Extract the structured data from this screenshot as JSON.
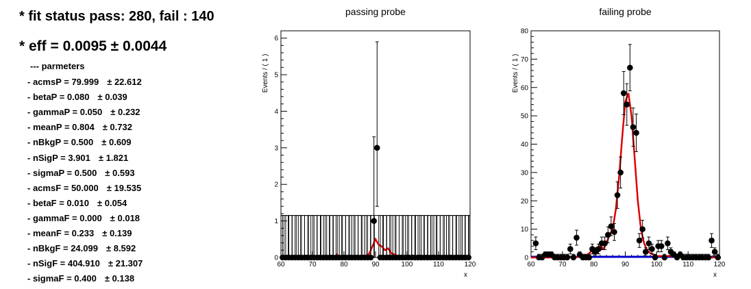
{
  "summary": {
    "status_text": "* fit status pass: 280, fail : 140",
    "eff_text": "* eff = 0.0095  ± 0.0044",
    "params_title": "--- parmeters",
    "parameters": [
      {
        "label": "- acmsP = 79.999",
        "error": "± 22.612"
      },
      {
        "label": "- betaP = 0.080",
        "error": "± 0.039"
      },
      {
        "label": "- gammaP = 0.050",
        "error": "± 0.232"
      },
      {
        "label": "- meanP = 0.804",
        "error": "± 0.732"
      },
      {
        "label": "- nBkgP = 0.500",
        "error": "± 0.609"
      },
      {
        "label": "- nSigP = 3.901",
        "error": "± 1.821"
      },
      {
        "label": "- sigmaP = 0.500",
        "error": "± 0.593"
      },
      {
        "label": "- acmsF = 50.000",
        "error": "± 19.535"
      },
      {
        "label": "- betaF = 0.010",
        "error": "± 0.054"
      },
      {
        "label": "- gammaF = 0.000",
        "error": "± 0.018"
      },
      {
        "label": "- meanF = 0.233",
        "error": "± 0.139"
      },
      {
        "label": "- nBkgF = 24.099",
        "error": "± 8.592"
      },
      {
        "label": "- nSigF = 404.910",
        "error": "± 21.307"
      },
      {
        "label": "- sigmaF = 0.400",
        "error": "± 0.138"
      }
    ]
  },
  "colors": {
    "data": "#000000",
    "fit": "#dd0000",
    "background": "#0000cc",
    "frame": "#000000"
  },
  "chart_data": [
    {
      "type": "scatter",
      "title": "passing probe",
      "xlabel": "x",
      "ylabel": "Events / ( 1 )",
      "xlim": [
        60,
        120
      ],
      "ylim": [
        0,
        6.2
      ],
      "xticks": [
        60,
        70,
        80,
        90,
        100,
        110,
        120
      ],
      "yticks": [
        0,
        1,
        2,
        3,
        4,
        5,
        6
      ],
      "uncertainty_band": {
        "low": 0,
        "high": 1.15,
        "hatched": true
      },
      "points": [
        {
          "x": 89.5,
          "y": 1,
          "err_low": 1,
          "err_high": 2.3
        },
        {
          "x": 90.5,
          "y": 3,
          "err_low": 1.6,
          "err_high": 2.9
        }
      ],
      "zero_bins_x_range": [
        60.5,
        119.5
      ],
      "fit_curve": {
        "x": [
          60,
          77,
          77.8,
          78.5,
          86,
          88,
          89,
          90,
          91,
          92,
          93,
          94,
          95,
          96,
          97,
          97.6,
          120
        ],
        "y": [
          0,
          0,
          0.08,
          0,
          0,
          0.1,
          0.3,
          0.5,
          0.35,
          0.3,
          0.2,
          0.25,
          0.12,
          0.08,
          0.05,
          0,
          0
        ]
      }
    },
    {
      "type": "scatter",
      "title": "failing probe",
      "xlabel": "x",
      "ylabel": "Events / ( 1 )",
      "xlim": [
        60,
        120
      ],
      "ylim": [
        0,
        80
      ],
      "xticks": [
        60,
        70,
        80,
        90,
        100,
        110,
        120
      ],
      "yticks": [
        0,
        10,
        20,
        30,
        40,
        50,
        60,
        70,
        80
      ],
      "points": [
        {
          "x": 61.5,
          "y": 5
        },
        {
          "x": 62.5,
          "y": 0
        },
        {
          "x": 63.5,
          "y": 0
        },
        {
          "x": 64.5,
          "y": 1
        },
        {
          "x": 65.5,
          "y": 1
        },
        {
          "x": 66.5,
          "y": 1
        },
        {
          "x": 67.5,
          "y": 0
        },
        {
          "x": 68.5,
          "y": 0
        },
        {
          "x": 69.5,
          "y": 0
        },
        {
          "x": 70.5,
          "y": 0
        },
        {
          "x": 71.5,
          "y": 0
        },
        {
          "x": 72.5,
          "y": 3
        },
        {
          "x": 73.5,
          "y": 0
        },
        {
          "x": 74.5,
          "y": 7
        },
        {
          "x": 75.5,
          "y": 1
        },
        {
          "x": 76.5,
          "y": 0
        },
        {
          "x": 77.5,
          "y": 0
        },
        {
          "x": 78.5,
          "y": 0
        },
        {
          "x": 79.5,
          "y": 3
        },
        {
          "x": 80.5,
          "y": 2
        },
        {
          "x": 81.5,
          "y": 3
        },
        {
          "x": 82.5,
          "y": 5
        },
        {
          "x": 83.5,
          "y": 5
        },
        {
          "x": 84.5,
          "y": 8
        },
        {
          "x": 85.5,
          "y": 11
        },
        {
          "x": 86.5,
          "y": 9
        },
        {
          "x": 87.5,
          "y": 22
        },
        {
          "x": 88.5,
          "y": 30
        },
        {
          "x": 89.5,
          "y": 58
        },
        {
          "x": 90.5,
          "y": 54
        },
        {
          "x": 91.5,
          "y": 67
        },
        {
          "x": 92.5,
          "y": 46
        },
        {
          "x": 93.5,
          "y": 44
        },
        {
          "x": 94.5,
          "y": 6
        },
        {
          "x": 95.5,
          "y": 10
        },
        {
          "x": 96.5,
          "y": 2
        },
        {
          "x": 97.5,
          "y": 5
        },
        {
          "x": 98.5,
          "y": 3
        },
        {
          "x": 99.5,
          "y": 0
        },
        {
          "x": 100.5,
          "y": 4
        },
        {
          "x": 101.5,
          "y": 4
        },
        {
          "x": 102.5,
          "y": 0
        },
        {
          "x": 103.5,
          "y": 5
        },
        {
          "x": 104.5,
          "y": 2
        },
        {
          "x": 105.5,
          "y": 1
        },
        {
          "x": 106.5,
          "y": 0
        },
        {
          "x": 107.5,
          "y": 1
        },
        {
          "x": 108.5,
          "y": 0
        },
        {
          "x": 109.5,
          "y": 0
        },
        {
          "x": 110.5,
          "y": 0
        },
        {
          "x": 111.5,
          "y": 0
        },
        {
          "x": 112.5,
          "y": 0
        },
        {
          "x": 113.5,
          "y": 0
        },
        {
          "x": 114.5,
          "y": 0
        },
        {
          "x": 115.5,
          "y": 0
        },
        {
          "x": 116.5,
          "y": 0
        },
        {
          "x": 117.5,
          "y": 6
        },
        {
          "x": 118.5,
          "y": 2
        },
        {
          "x": 119.5,
          "y": 0
        }
      ],
      "fit_curve": {
        "x": [
          60,
          74,
          78,
          80,
          82,
          83,
          84,
          85,
          86,
          87,
          88,
          89,
          90,
          91,
          92,
          93,
          94,
          95,
          96,
          97,
          98,
          99,
          100,
          102,
          104,
          106,
          108,
          120
        ],
        "y": [
          0,
          0,
          1,
          3,
          4,
          3,
          5,
          8,
          10,
          17,
          28,
          42,
          55,
          58,
          50,
          35,
          20,
          10,
          5,
          2.5,
          1.5,
          1,
          0.5,
          0.5,
          0.5,
          0.3,
          0,
          0
        ]
      },
      "background_curve": {
        "x": [
          60,
          120
        ],
        "y": [
          0.25,
          0.25
        ]
      }
    }
  ]
}
